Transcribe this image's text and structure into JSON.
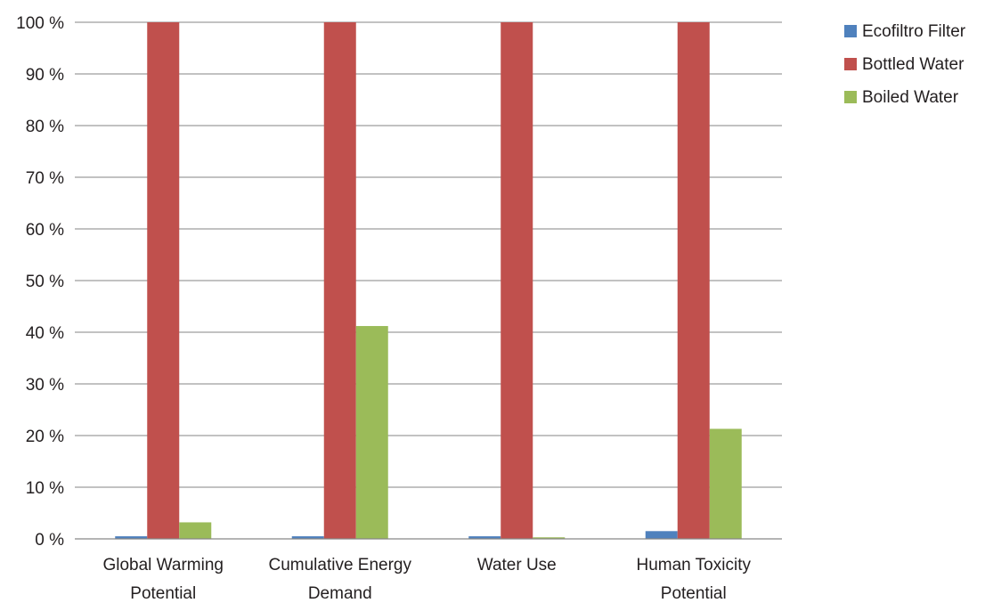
{
  "chart_data": {
    "type": "bar",
    "title": "",
    "xlabel": "",
    "ylabel": "",
    "categories": [
      [
        "Global Warming",
        "Potential"
      ],
      [
        "Cumulative Energy",
        "Demand"
      ],
      [
        "Water Use"
      ],
      [
        "Human Toxicity",
        "Potential"
      ]
    ],
    "series": [
      {
        "name": "Ecofiltro Filter",
        "values": [
          0.5,
          0.5,
          0.5,
          1.5
        ]
      },
      {
        "name": "Bottled Water",
        "values": [
          100,
          100,
          100,
          100
        ]
      },
      {
        "name": "Boiled Water",
        "values": [
          3.2,
          41.2,
          0.3,
          21.3
        ]
      }
    ],
    "y_ticks": [
      "0 %",
      "10 %",
      "20 %",
      "30 %",
      "40 %",
      "50 %",
      "60 %",
      "70 %",
      "80 %",
      "90 %",
      "100 %"
    ],
    "ylim": [
      0,
      100
    ],
    "grid": true,
    "legend_position": "top-right",
    "colors": {
      "Ecofiltro Filter": "#4f81bd",
      "Bottled Water": "#c0504d",
      "Boiled Water": "#9bbb59",
      "grid": "#868686",
      "text": "#231f20"
    }
  }
}
